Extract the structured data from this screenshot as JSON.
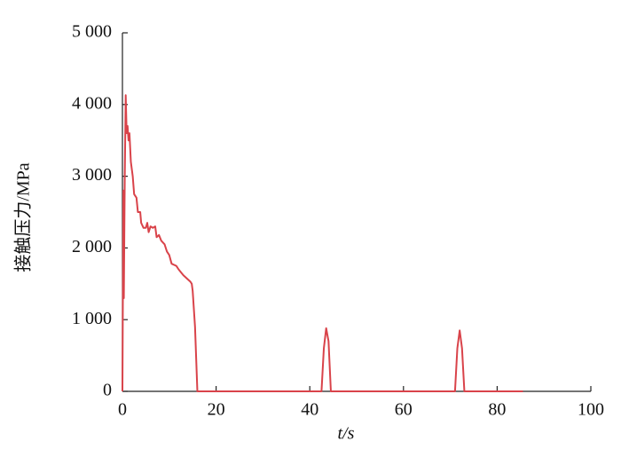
{
  "chart_data": {
    "type": "line",
    "xlabel": "t/s",
    "ylabel": "接触压力/MPa",
    "xlim": [
      0,
      100
    ],
    "ylim": [
      0,
      5000
    ],
    "xticks": [
      0,
      20,
      40,
      60,
      80,
      100
    ],
    "yticks": [
      0,
      {
        "value": 1000,
        "label": "1 000"
      },
      {
        "value": 2000,
        "label": "2 000"
      },
      {
        "value": 3000,
        "label": "3 000"
      },
      {
        "value": 4000,
        "label": "4 000"
      },
      {
        "value": 5000,
        "label": "5 000"
      }
    ],
    "x": [
      0,
      0.2,
      0.3,
      0.5,
      0.7,
      0.9,
      1.1,
      1.3,
      1.5,
      1.8,
      2.2,
      2.5,
      3,
      3.3,
      3.8,
      4,
      4.5,
      5,
      5.3,
      5.6,
      6,
      6.5,
      7,
      7.3,
      7.8,
      8.3,
      9,
      9.5,
      10,
      10.5,
      11.5,
      12,
      13,
      14,
      14.5,
      14.8,
      15,
      15.5,
      16,
      42.5,
      43,
      43.5,
      44,
      44.5,
      71,
      71.5,
      72,
      72.5,
      73,
      85.5
    ],
    "series": [
      {
        "color": "#d9434a",
        "values": [
          0,
          2800,
          1300,
          3000,
          4130,
          3600,
          3700,
          3500,
          3600,
          3200,
          3000,
          2750,
          2700,
          2500,
          2500,
          2350,
          2280,
          2280,
          2350,
          2220,
          2300,
          2280,
          2300,
          2150,
          2180,
          2100,
          2050,
          1950,
          1900,
          1780,
          1750,
          1700,
          1620,
          1560,
          1530,
          1500,
          1400,
          900,
          0,
          0,
          600,
          880,
          700,
          0,
          0,
          600,
          850,
          600,
          0,
          0
        ]
      }
    ]
  }
}
